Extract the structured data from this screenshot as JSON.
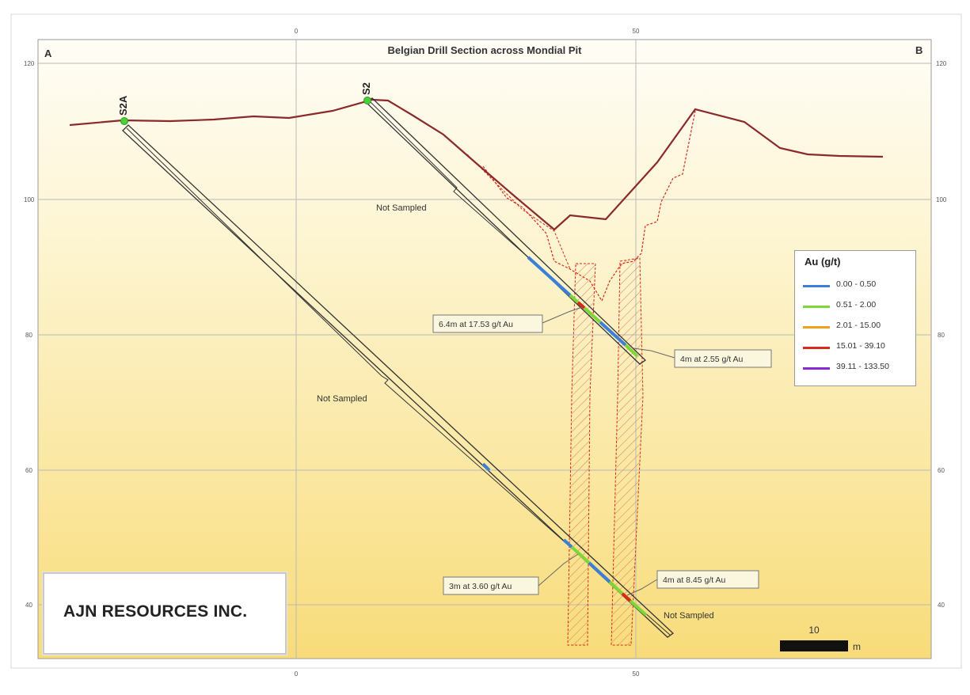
{
  "title": "Belgian Drill Section across Mondial Pit",
  "corner_left": "A",
  "corner_right": "B",
  "axis": {
    "top_ticks": [
      "0",
      "50"
    ],
    "bottom_ticks": [
      "0",
      "50"
    ],
    "left_ticks": [
      "120",
      "100",
      "80",
      "60",
      "40"
    ],
    "right_ticks": [
      "120",
      "100",
      "80",
      "60",
      "40"
    ]
  },
  "holes": [
    {
      "id": "hole-s2a",
      "label": "S2A"
    },
    {
      "id": "hole-s2",
      "label": "S2"
    }
  ],
  "annotations": {
    "not_sampled_upper": "Not Sampled",
    "not_sampled_middle": "Not Sampled",
    "not_sampled_bottom": "Not Sampled"
  },
  "callouts": {
    "c1": "6.4m at 17.53 g/t Au",
    "c2": "4m at 2.55 g/t Au",
    "c3": "3m at 3.60 g/t Au",
    "c4": "4m at 8.45 g/t Au"
  },
  "legend": {
    "title": "Au (g/t)",
    "items": [
      {
        "label": "0.00 - 0.50",
        "color": "#3b7fd9"
      },
      {
        "label": "0.51 - 2.00",
        "color": "#7ed63a"
      },
      {
        "label": "2.01 - 15.00",
        "color": "#f0a020"
      },
      {
        "label": "15.01 - 39.10",
        "color": "#d62a1a"
      },
      {
        "label": "39.11 - 133.50",
        "color": "#8a2ad6"
      }
    ]
  },
  "scale_bar": {
    "value": "10",
    "unit": "m"
  },
  "company": "AJN RESOURCES INC.",
  "colors": {
    "topography": "#8b2a2a",
    "pit_outline": "#d62a1a",
    "hole_trace": "#333333",
    "collar": "#4ccf3a"
  }
}
